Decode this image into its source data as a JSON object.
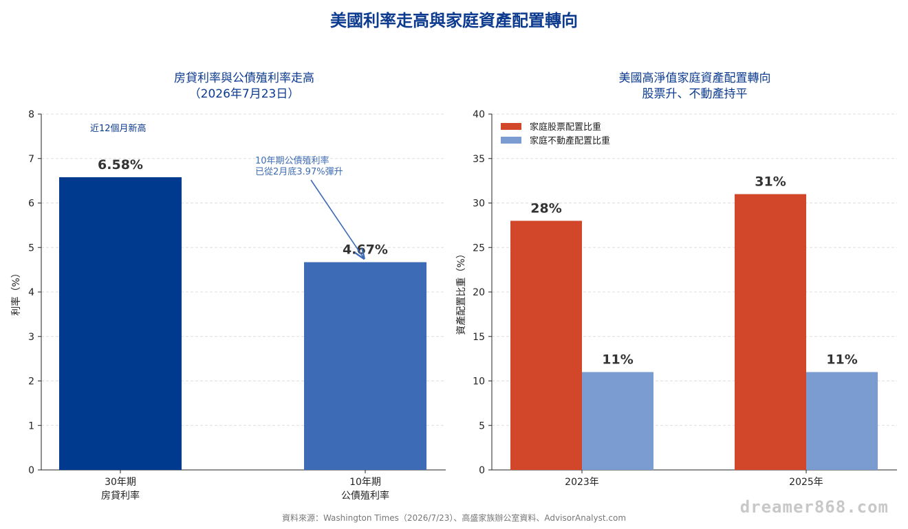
{
  "title": "美國利率走高與家庭資產配置轉向",
  "source": "資料來源：Washington Times（2026/7/23）、高盛家族辦公室資料、AdvisorAnalyst.com",
  "watermark": "dreamer868.com",
  "colors": {
    "title": "#0b3a8f",
    "mortgage": "#003a8f",
    "treasury": "#3d6bb5",
    "equity": "#d2472a",
    "realestate": "#7b9cd1"
  },
  "chart_data": [
    {
      "type": "bar",
      "title": "房貸利率與公債殖利率走高\n（2026年7月23日）",
      "ylabel": "利率（%）",
      "ylim": [
        0,
        8
      ],
      "yticks": [
        0,
        1,
        2,
        3,
        4,
        5,
        6,
        7,
        8
      ],
      "grid": true,
      "categories": [
        "30年期\n房貸利率",
        "10年期\n公債殖利率"
      ],
      "values": [
        6.58,
        4.67
      ],
      "value_labels": [
        "6.58%",
        "4.67%"
      ],
      "annotations": [
        {
          "text": "近12個月新高",
          "target": "30年期 房貸利率"
        },
        {
          "text": "10年期公債殖利率\n已從2月底3.97%彈升",
          "target": "10年期 公債殖利率",
          "arrow": true
        }
      ]
    },
    {
      "type": "bar",
      "title": "美國高淨值家庭資產配置轉向\n股票升、不動產持平",
      "ylabel": "資產配置比重（%）",
      "ylim": [
        0,
        40
      ],
      "yticks": [
        0,
        5,
        10,
        15,
        20,
        25,
        30,
        35,
        40
      ],
      "grid": true,
      "legend_position": "top-left",
      "categories": [
        "2023年",
        "2025年"
      ],
      "series": [
        {
          "name": "家庭股票配置比重",
          "values": [
            28,
            31
          ],
          "labels": [
            "28%",
            "31%"
          ]
        },
        {
          "name": "家庭不動產配置比重",
          "values": [
            11,
            11
          ],
          "labels": [
            "11%",
            "11%"
          ]
        }
      ]
    }
  ]
}
